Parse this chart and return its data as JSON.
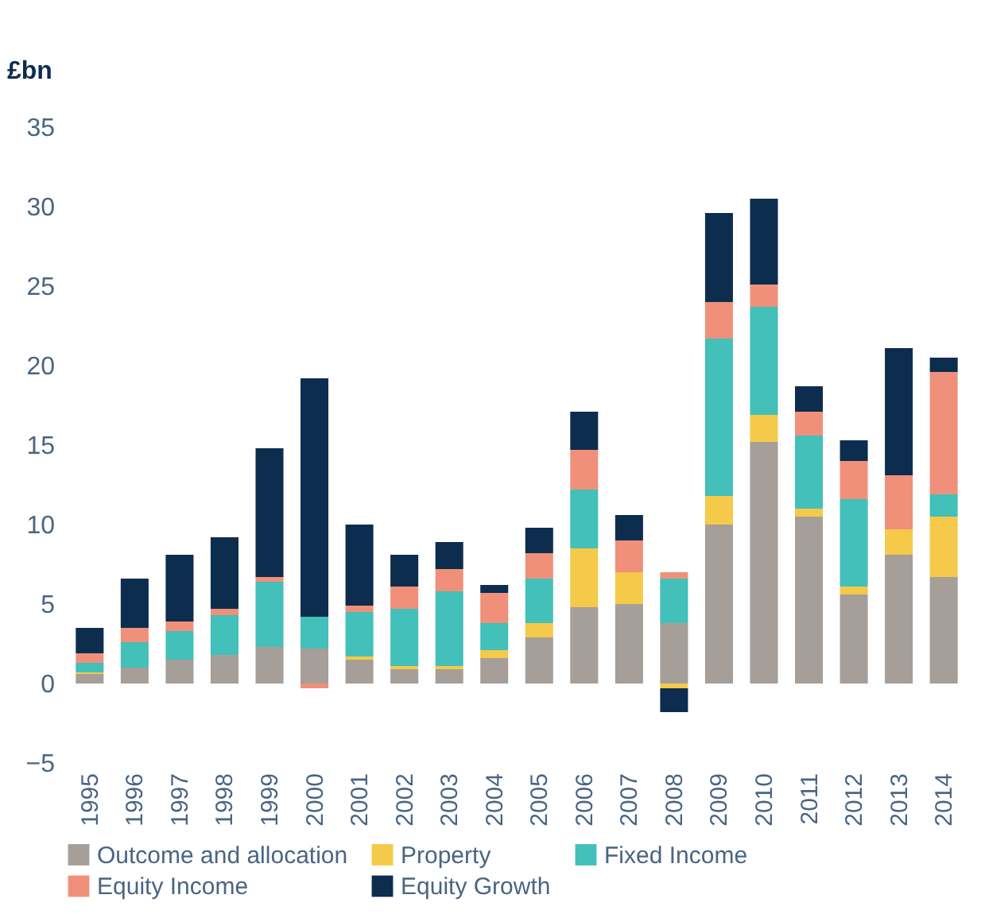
{
  "chart_data": {
    "type": "bar",
    "stacked": true,
    "ylabel": "£bn",
    "categories": [
      "1995",
      "1996",
      "1997",
      "1998",
      "1999",
      "2000",
      "2001",
      "2002",
      "2003",
      "2004",
      "2005",
      "2006",
      "2007",
      "2008",
      "2009",
      "2010",
      "2011",
      "2012",
      "2013",
      "2014"
    ],
    "ylim": [
      -5,
      35
    ],
    "yticks": [
      -5,
      0,
      5,
      10,
      15,
      20,
      25,
      30,
      35
    ],
    "grid": false,
    "legend": "bottom",
    "series": [
      {
        "name": "Outcome and allocation",
        "color": "#a69e98",
        "values": [
          0.6,
          1.0,
          1.5,
          1.8,
          2.3,
          2.2,
          1.5,
          0.9,
          0.9,
          1.6,
          2.9,
          4.8,
          5.0,
          3.8,
          10.0,
          15.2,
          10.5,
          5.6,
          8.1,
          6.7
        ]
      },
      {
        "name": "Property",
        "color": "#f5c94a",
        "values": [
          0.1,
          0,
          0,
          0,
          0,
          0,
          0.2,
          0.2,
          0.2,
          0.5,
          0.9,
          3.7,
          2.0,
          -0.3,
          1.8,
          1.7,
          0.5,
          0.5,
          1.6,
          3.8
        ]
      },
      {
        "name": "Fixed Income",
        "color": "#42c0b9",
        "values": [
          0.6,
          1.6,
          1.8,
          2.5,
          4.1,
          2.0,
          2.8,
          3.6,
          4.7,
          1.7,
          2.8,
          3.7,
          0,
          2.8,
          9.9,
          6.8,
          4.6,
          5.5,
          0,
          1.4
        ]
      },
      {
        "name": "Equity Income",
        "color": "#f0907a",
        "values": [
          0.6,
          0.9,
          0.6,
          0.4,
          0.3,
          -0.3,
          0.4,
          1.4,
          1.4,
          1.9,
          1.6,
          2.5,
          2.0,
          0.4,
          2.3,
          1.4,
          1.5,
          2.4,
          3.4,
          7.7
        ]
      },
      {
        "name": "Equity Growth",
        "color": "#0d2d4f",
        "values": [
          1.6,
          3.1,
          4.2,
          4.5,
          8.1,
          15.0,
          5.1,
          2.0,
          1.7,
          0.5,
          1.6,
          2.4,
          1.6,
          -1.5,
          5.6,
          5.4,
          1.6,
          1.3,
          8.0,
          0.9
        ]
      }
    ]
  }
}
